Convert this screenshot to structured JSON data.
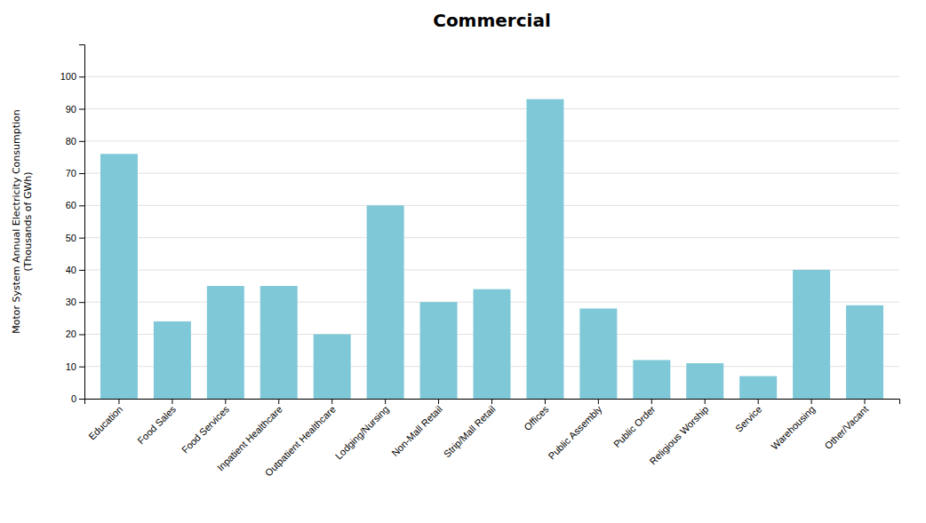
{
  "chart_data": {
    "type": "bar",
    "title": "Commercial",
    "ylabel": "Motor System Annual Electricity Consumption\n(Thousands of GWh)",
    "categories": [
      "Education",
      "Food Sales",
      "Food Services",
      "Inpatient Healthcare",
      "Outpatient Healthcare",
      "Lodging/Nursing",
      "Non-Mall Retail",
      "Strip/Mall Retail",
      "Offices",
      "Public Assembly",
      "Public Order",
      "Religious Worship",
      "Service",
      "Warehousing",
      "Other/Vacant"
    ],
    "values": [
      76,
      24,
      35,
      35,
      20,
      60,
      30,
      34,
      93,
      28,
      12,
      11,
      7,
      40,
      29
    ],
    "color": "#7ec8d8",
    "ylim": [
      0,
      110
    ],
    "yticks": [
      0,
      10,
      20,
      30,
      40,
      50,
      60,
      70,
      80,
      90,
      100
    ],
    "grid": true
  }
}
